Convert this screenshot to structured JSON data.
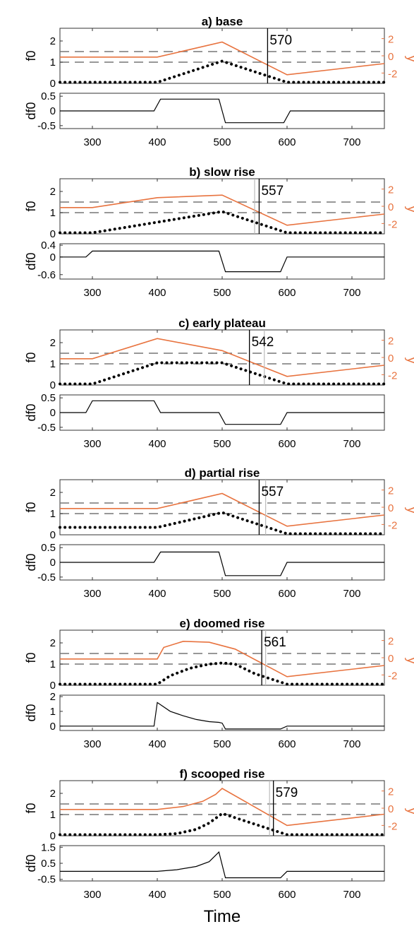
{
  "chart_data": {
    "type": "line",
    "xlabel": "Time",
    "xlim": [
      250,
      750
    ],
    "xticks": [
      300,
      400,
      500,
      600,
      700
    ],
    "colors": {
      "f0": "#e8733f",
      "y": "#000000",
      "df0": "#000000",
      "dashed": "#777777",
      "marker": "#000000"
    },
    "panels": [
      {
        "title": "a) base",
        "marker": 570,
        "marker_label": "570",
        "faint_marker": null,
        "f0_ylabel": "f0",
        "f0_ylim": [
          0,
          2.6
        ],
        "f0_ticks": [
          0,
          1,
          2
        ],
        "y_ylabel": "y",
        "y_ylim": [
          -3.2,
          3.2
        ],
        "y_ticks": [
          "2",
          "0",
          "-2"
        ],
        "dashed_levels": [
          1.5,
          1.0
        ],
        "f0_dotted": {
          "x": [
            250,
            400,
            450,
            500,
            550,
            600,
            750
          ],
          "y": [
            0.05,
            0.05,
            0.55,
            1.05,
            0.55,
            0.05,
            0.05
          ]
        },
        "y_curve": {
          "x": [
            250,
            400,
            500,
            600,
            750
          ],
          "y": [
            -0.15,
            -0.15,
            1.6,
            -2.2,
            -0.9
          ]
        },
        "df0_ylabel": "df0",
        "df0_ylim": [
          -0.6,
          0.6
        ],
        "df0_ticks": [
          "0.5",
          "0",
          "-0.5"
        ],
        "df0": {
          "x": [
            250,
            395,
            405,
            495,
            505,
            595,
            605,
            750
          ],
          "y": [
            0,
            0,
            0.4,
            0.4,
            -0.4,
            -0.4,
            0,
            0
          ]
        }
      },
      {
        "title": "b) slow rise",
        "marker": 557,
        "marker_label": "557",
        "faint_marker": 550,
        "f0_ylabel": "f0",
        "f0_ylim": [
          0,
          2.6
        ],
        "f0_ticks": [
          0,
          1,
          2
        ],
        "y_ylabel": "y",
        "y_ylim": [
          -3.2,
          3.2
        ],
        "y_ticks": [
          "2",
          "0",
          "-2"
        ],
        "dashed_levels": [
          1.5,
          1.0
        ],
        "f0_dotted": {
          "x": [
            250,
            300,
            400,
            500,
            550,
            600,
            750
          ],
          "y": [
            0.05,
            0.05,
            0.55,
            1.05,
            0.55,
            0.05,
            0.05
          ]
        },
        "y_curve": {
          "x": [
            250,
            300,
            400,
            500,
            600,
            750
          ],
          "y": [
            -0.15,
            -0.15,
            1.0,
            1.3,
            -2.2,
            -0.9
          ]
        },
        "df0_ylabel": "df0",
        "df0_ylim": [
          -0.75,
          0.45
        ],
        "df0_ticks": [
          "0.4",
          "0",
          "-0.6"
        ],
        "df0": {
          "x": [
            250,
            290,
            300,
            495,
            505,
            590,
            600,
            750
          ],
          "y": [
            0,
            0,
            0.2,
            0.2,
            -0.5,
            -0.5,
            0,
            0
          ]
        }
      },
      {
        "title": "c) early plateau",
        "marker": 542,
        "marker_label": "542",
        "faint_marker": 565,
        "f0_ylabel": "f0",
        "f0_ylim": [
          0,
          2.6
        ],
        "f0_ticks": [
          0,
          1,
          2
        ],
        "y_ylabel": "y",
        "y_ylim": [
          -3.2,
          3.2
        ],
        "y_ticks": [
          "2",
          "0",
          "-2"
        ],
        "dashed_levels": [
          1.5,
          1.0
        ],
        "f0_dotted": {
          "x": [
            250,
            300,
            350,
            400,
            500,
            550,
            600,
            750
          ],
          "y": [
            0.05,
            0.05,
            0.55,
            1.05,
            1.05,
            0.55,
            0.05,
            0.05
          ]
        },
        "y_curve": {
          "x": [
            250,
            300,
            400,
            500,
            600,
            750
          ],
          "y": [
            -0.15,
            -0.15,
            2.2,
            0.8,
            -2.2,
            -0.9
          ]
        },
        "df0_ylabel": "df0",
        "df0_ylim": [
          -0.6,
          0.6
        ],
        "df0_ticks": [
          "0.5",
          "0",
          "-0.5"
        ],
        "df0": {
          "x": [
            250,
            290,
            300,
            395,
            405,
            495,
            505,
            590,
            600,
            750
          ],
          "y": [
            0,
            0,
            0.4,
            0.4,
            0,
            0,
            -0.4,
            -0.4,
            0,
            0
          ]
        }
      },
      {
        "title": "d) partial rise",
        "marker": 557,
        "marker_label": "557",
        "faint_marker": 567,
        "f0_ylabel": "f0",
        "f0_ylim": [
          0,
          2.6
        ],
        "f0_ticks": [
          0,
          1,
          2
        ],
        "y_ylabel": "y",
        "y_ylim": [
          -3.2,
          3.2
        ],
        "y_ticks": [
          "2",
          "0",
          "-2"
        ],
        "dashed_levels": [
          1.5,
          1.0
        ],
        "f0_dotted": {
          "x": [
            250,
            400,
            500,
            550,
            600,
            750
          ],
          "y": [
            0.35,
            0.35,
            1.05,
            0.55,
            0.05,
            0.05
          ]
        },
        "y_curve": {
          "x": [
            250,
            400,
            500,
            600,
            750
          ],
          "y": [
            -0.15,
            -0.15,
            1.6,
            -2.2,
            -0.9
          ]
        },
        "df0_ylabel": "df0",
        "df0_ylim": [
          -0.6,
          0.6
        ],
        "df0_ticks": [
          "0.5",
          "0",
          "-0.5"
        ],
        "df0": {
          "x": [
            250,
            395,
            405,
            495,
            505,
            590,
            600,
            750
          ],
          "y": [
            0,
            0,
            0.35,
            0.35,
            -0.45,
            -0.45,
            0,
            0
          ]
        }
      },
      {
        "title": "e) doomed rise",
        "marker": 561,
        "marker_label": "561",
        "faint_marker": 567,
        "f0_ylabel": "f0",
        "f0_ylim": [
          0,
          2.6
        ],
        "f0_ticks": [
          0,
          1,
          2
        ],
        "y_ylabel": "y",
        "y_ylim": [
          -3.2,
          3.2
        ],
        "y_ticks": [
          "2",
          "0",
          "-2"
        ],
        "dashed_levels": [
          1.5,
          1.0
        ],
        "f0_dotted": {
          "x": [
            250,
            400,
            420,
            450,
            480,
            500,
            520,
            550,
            600,
            750
          ],
          "y": [
            0.05,
            0.05,
            0.45,
            0.8,
            1.0,
            1.05,
            1.0,
            0.55,
            0.05,
            0.05
          ]
        },
        "y_curve": {
          "x": [
            250,
            400,
            410,
            440,
            480,
            520,
            600,
            750
          ],
          "y": [
            -0.15,
            -0.15,
            1.2,
            1.9,
            1.8,
            1.0,
            -2.2,
            -0.9
          ]
        },
        "df0_ylabel": "df0",
        "df0_ylim": [
          -0.3,
          2.1
        ],
        "df0_ticks": [
          "2",
          "1",
          "0"
        ],
        "df0": {
          "x": [
            250,
            395,
            400,
            420,
            440,
            460,
            480,
            495,
            500,
            505,
            590,
            600,
            750
          ],
          "y": [
            0,
            0,
            1.6,
            1.0,
            0.7,
            0.45,
            0.3,
            0.25,
            0.2,
            -0.2,
            -0.2,
            0,
            0
          ]
        }
      },
      {
        "title": "f) scooped rise",
        "marker": 579,
        "marker_label": "579",
        "faint_marker": 573,
        "f0_ylabel": "f0",
        "f0_ylim": [
          0,
          2.6
        ],
        "f0_ticks": [
          0,
          1,
          2
        ],
        "y_ylabel": "y",
        "y_ylim": [
          -3.2,
          3.2
        ],
        "y_ticks": [
          "2",
          "0",
          "-2"
        ],
        "dashed_levels": [
          1.5,
          1.0
        ],
        "f0_dotted": {
          "x": [
            250,
            400,
            430,
            460,
            480,
            500,
            550,
            600,
            750
          ],
          "y": [
            0.05,
            0.05,
            0.1,
            0.3,
            0.6,
            1.05,
            0.55,
            0.05,
            0.05
          ]
        },
        "y_curve": {
          "x": [
            250,
            400,
            440,
            470,
            490,
            500,
            600,
            750
          ],
          "y": [
            -0.15,
            -0.15,
            0.2,
            0.8,
            1.6,
            2.3,
            -2.0,
            -0.7
          ]
        },
        "df0_ylabel": "df0",
        "df0_ylim": [
          -0.6,
          1.6
        ],
        "df0_ticks": [
          "1.5",
          "0.5",
          "-0.5"
        ],
        "df0_tick_values": [
          1.5,
          0.5,
          -0.5
        ],
        "df0": {
          "x": [
            250,
            400,
            430,
            460,
            480,
            495,
            505,
            590,
            600,
            750
          ],
          "y": [
            0,
            0,
            0.1,
            0.3,
            0.6,
            1.2,
            -0.4,
            -0.4,
            0,
            0
          ]
        }
      }
    ]
  }
}
